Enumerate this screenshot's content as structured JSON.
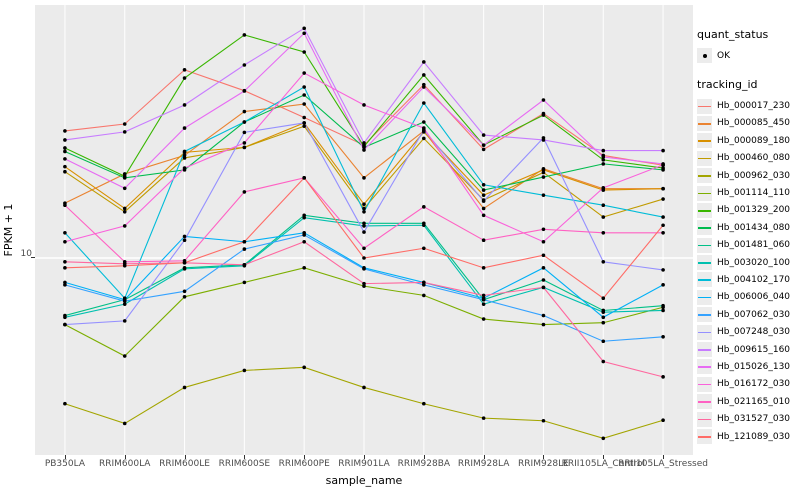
{
  "figure": {
    "panel_bg": "#EBEBEB",
    "grid_color": "#FFFFFF",
    "point_color": "#000000",
    "tick_text_color": "#4D4D4D",
    "legend_key_bg": "#ECECEC"
  },
  "y_axis": {
    "title": "FPKM + 1",
    "tick_labels": [
      "10"
    ]
  },
  "x_axis": {
    "title": "sample_name",
    "tick_labels": [
      "PB350LA",
      "RRIM600LA",
      "RRIM600LE",
      "RRIM600SE",
      "RRIM600PE",
      "RRIM901LA",
      "RRIM928BA",
      "RRIM928LA",
      "RRIM928LE",
      "RRII105LA_Control",
      "RRII105LA_Stressed"
    ]
  },
  "legend": {
    "quant_status": {
      "title": "quant_status",
      "items": [
        {
          "label": "OK",
          "symbol": "point"
        }
      ]
    },
    "tracking_id": {
      "title": "tracking_id"
    }
  },
  "chart_data": {
    "type": "line",
    "xlabel": "sample_name",
    "ylabel": "FPKM + 1",
    "yscale": "log10",
    "ytick_values": [
      10
    ],
    "grid": true,
    "legend_position": "right",
    "x": [
      "PB350LA",
      "RRIM600LA",
      "RRIM600LE",
      "RRIM600SE",
      "RRIM600PE",
      "RRIM901LA",
      "RRIM928BA",
      "RRIM928LA",
      "RRIM928LE",
      "RRII105LA_Control",
      "RRII105LA_Stressed"
    ],
    "series": [
      {
        "name": "Hb_000017_230",
        "color": "#F8766D",
        "values": [
          39,
          42,
          75,
          60,
          45,
          33.5,
          64,
          32,
          47,
          30,
          27
        ]
      },
      {
        "name": "Hb_000085_450",
        "color": "#EA8331",
        "values": [
          18,
          24.6,
          30,
          48,
          52,
          23.6,
          39,
          17,
          26,
          21,
          21
        ]
      },
      {
        "name": "Hb_000089_180",
        "color": "#D89000",
        "values": [
          26.6,
          17,
          31,
          32.7,
          42.5,
          17.8,
          38.6,
          19.6,
          25.7,
          20.7,
          21
        ]
      },
      {
        "name": "Hb_000460_080",
        "color": "#C09B00",
        "values": [
          25.2,
          16.4,
          29.2,
          32.7,
          41,
          17,
          36,
          18.6,
          25,
          15.5,
          18.8
        ]
      },
      {
        "name": "Hb_000962_030",
        "color": "#A3A500",
        "values": [
          2.1,
          1.7,
          2.5,
          3.0,
          3.1,
          2.5,
          2.1,
          1.8,
          1.75,
          1.45,
          1.76
        ]
      },
      {
        "name": "Hb_001114_110",
        "color": "#7CAE00",
        "values": [
          4.9,
          3.5,
          6.6,
          7.7,
          9.0,
          7.4,
          6.7,
          5.2,
          4.9,
          5.0,
          5.9
        ]
      },
      {
        "name": "Hb_001329_200",
        "color": "#39B600",
        "values": [
          32.5,
          24,
          68.7,
          109,
          90.8,
          33,
          71,
          33.5,
          46.2,
          28.6,
          26.2
        ]
      },
      {
        "name": "Hb_001434_080",
        "color": "#00BB4E",
        "values": [
          31.3,
          23.6,
          25.7,
          42.9,
          57.3,
          32.7,
          42.9,
          20.7,
          23.8,
          27.4,
          25.7
        ]
      },
      {
        "name": "Hb_001481_060",
        "color": "#00C087",
        "values": [
          5.4,
          6.4,
          9.0,
          9.3,
          15.8,
          14.5,
          14.5,
          6.4,
          7.9,
          5.7,
          6.0
        ]
      },
      {
        "name": "Hb_003020_100",
        "color": "#00C0AF",
        "values": [
          5.3,
          6.1,
          8.9,
          9.2,
          15.4,
          14.1,
          14.2,
          6.1,
          7.3,
          5.6,
          5.7
        ]
      },
      {
        "name": "Hb_004102_170",
        "color": "#00BCD8",
        "values": [
          13.1,
          6.5,
          31.3,
          42.9,
          62.4,
          16.4,
          52.6,
          21.9,
          19.6,
          17.6,
          15.5
        ]
      },
      {
        "name": "Hb_006006_040",
        "color": "#00B0F6",
        "values": [
          7.7,
          6.4,
          12.6,
          11.9,
          13.1,
          9.0,
          7.7,
          6.5,
          9.0,
          5.3,
          7.5
        ]
      },
      {
        "name": "Hb_007062_030",
        "color": "#35A2FF",
        "values": [
          7.5,
          6.3,
          7.0,
          11,
          12.8,
          8.9,
          7.5,
          6.4,
          5.4,
          4.1,
          4.3
        ]
      },
      {
        "name": "Hb_007248_030",
        "color": "#9590FF",
        "values": [
          4.9,
          5.1,
          12.1,
          38.4,
          42.5,
          13.2,
          39.4,
          18.4,
          36.2,
          9.6,
          8.8
        ]
      },
      {
        "name": "Hb_009615_160",
        "color": "#C77CFF",
        "values": [
          35.4,
          38.6,
          51.5,
          79,
          117,
          34.3,
          81.6,
          37.3,
          35.4,
          31.6,
          31.6
        ]
      },
      {
        "name": "Hb_015026_130",
        "color": "#E76BF3",
        "values": [
          28.9,
          21.1,
          40.2,
          59.8,
          111,
          31.8,
          62.4,
          33.5,
          54.3,
          29.5,
          27.4
        ]
      },
      {
        "name": "Hb_016172_030",
        "color": "#FA62DB",
        "values": [
          11.9,
          14.1,
          26.2,
          34.3,
          72.5,
          51.5,
          40.2,
          15.8,
          11.9,
          21.2,
          27.1
        ]
      },
      {
        "name": "Hb_021165_010",
        "color": "#FF61C3",
        "values": [
          17.6,
          9.6,
          9.7,
          20.3,
          23.6,
          11.1,
          17.3,
          12.1,
          13.6,
          13.1,
          13.1
        ]
      },
      {
        "name": "Hb_031527_030",
        "color": "#FF689F",
        "values": [
          9.6,
          9.4,
          9.5,
          9.3,
          11.9,
          7.6,
          7.7,
          6.7,
          7.3,
          3.3,
          2.8
        ]
      },
      {
        "name": "Hb_121089_030",
        "color": "#FF6C67",
        "values": [
          9.0,
          9.2,
          9.5,
          11.9,
          23.6,
          10,
          11.1,
          9.0,
          10.3,
          6.5,
          14.2
        ]
      }
    ]
  }
}
